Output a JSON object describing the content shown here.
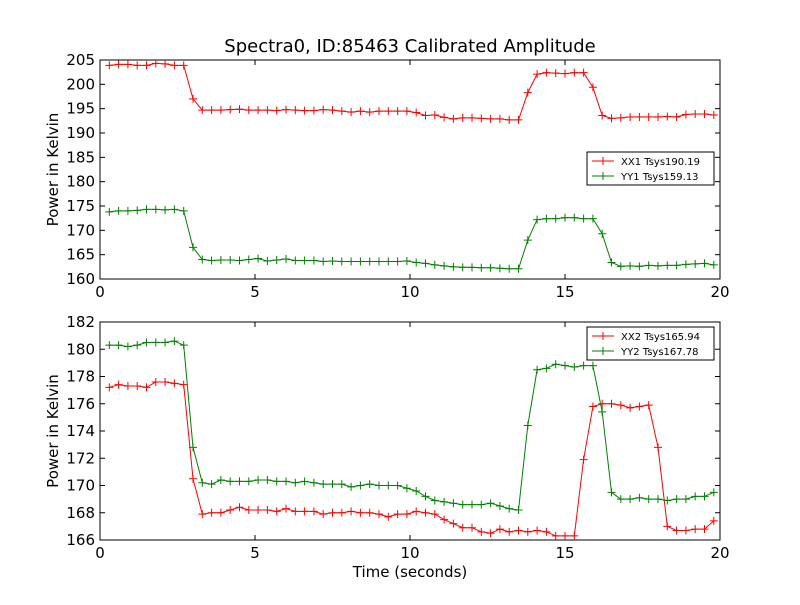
{
  "chart_data": [
    {
      "type": "line",
      "title": "Spectra0, ID:85463 Calibrated Amplitude",
      "xlabel": "",
      "ylabel": "Power in Kelvin",
      "xlim": [
        0,
        20
      ],
      "ylim": [
        160,
        205
      ],
      "xticks": [
        0,
        5,
        10,
        15,
        20
      ],
      "yticks": [
        160,
        165,
        170,
        175,
        180,
        185,
        190,
        195,
        200,
        205
      ],
      "grid": false,
      "legend_position": "right",
      "x": [
        0.3,
        0.6,
        0.9,
        1.2,
        1.5,
        1.8,
        2.1,
        2.4,
        2.7,
        3.0,
        3.3,
        3.6,
        3.9,
        4.2,
        4.5,
        4.8,
        5.1,
        5.4,
        5.7,
        6.0,
        6.3,
        6.6,
        6.9,
        7.2,
        7.5,
        7.8,
        8.1,
        8.4,
        8.7,
        9.0,
        9.3,
        9.6,
        9.9,
        10.2,
        10.5,
        10.8,
        11.1,
        11.4,
        11.7,
        12.0,
        12.3,
        12.6,
        12.9,
        13.2,
        13.5,
        13.8,
        14.1,
        14.4,
        14.7,
        15.0,
        15.3,
        15.6,
        15.9,
        16.2,
        16.5,
        16.8,
        17.1,
        17.4,
        17.7,
        18.0,
        18.3,
        18.6,
        18.9,
        19.2,
        19.5,
        19.8
      ],
      "series": [
        {
          "name": "XX1 Tsys190.19",
          "color": "#ff0000",
          "values": [
            203.9,
            204.1,
            204.1,
            203.9,
            203.9,
            204.3,
            204.2,
            203.9,
            203.9,
            197.0,
            194.7,
            194.7,
            194.7,
            194.8,
            194.9,
            194.7,
            194.7,
            194.7,
            194.6,
            194.8,
            194.7,
            194.6,
            194.6,
            194.8,
            194.7,
            194.5,
            194.3,
            194.5,
            194.3,
            194.5,
            194.5,
            194.5,
            194.5,
            194.2,
            193.6,
            193.7,
            193.2,
            192.9,
            193.1,
            193.1,
            193.0,
            192.9,
            192.9,
            192.7,
            192.7,
            198.3,
            202.1,
            202.4,
            202.3,
            202.2,
            202.4,
            202.4,
            199.4,
            193.6,
            193.0,
            193.1,
            193.3,
            193.3,
            193.3,
            193.3,
            193.4,
            193.3,
            193.8,
            193.9,
            193.9,
            193.7
          ]
        },
        {
          "name": "YY1 Tsys159.13",
          "color": "#008000",
          "values": [
            173.8,
            174.0,
            174.0,
            174.1,
            174.3,
            174.3,
            174.2,
            174.3,
            174.0,
            166.5,
            164.0,
            163.8,
            163.9,
            163.9,
            163.8,
            164.0,
            164.2,
            163.7,
            163.9,
            164.1,
            163.8,
            163.8,
            163.8,
            163.6,
            163.7,
            163.6,
            163.6,
            163.6,
            163.6,
            163.6,
            163.6,
            163.6,
            163.7,
            163.4,
            163.2,
            162.9,
            162.7,
            162.5,
            162.4,
            162.4,
            162.3,
            162.3,
            162.2,
            162.1,
            162.1,
            168.0,
            172.2,
            172.4,
            172.4,
            172.6,
            172.6,
            172.4,
            172.4,
            169.3,
            163.4,
            162.6,
            162.7,
            162.6,
            162.8,
            162.7,
            162.8,
            162.8,
            163.0,
            163.1,
            163.2,
            162.9
          ]
        }
      ]
    },
    {
      "type": "line",
      "title": "",
      "xlabel": "Time (seconds)",
      "ylabel": "Power in Kelvin",
      "xlim": [
        0,
        20
      ],
      "ylim": [
        166,
        182
      ],
      "xticks": [
        0,
        5,
        10,
        15,
        20
      ],
      "yticks": [
        166,
        168,
        170,
        172,
        174,
        176,
        178,
        180,
        182
      ],
      "grid": false,
      "legend_position": "top-right",
      "x": [
        0.3,
        0.6,
        0.9,
        1.2,
        1.5,
        1.8,
        2.1,
        2.4,
        2.7,
        3.0,
        3.3,
        3.6,
        3.9,
        4.2,
        4.5,
        4.8,
        5.1,
        5.4,
        5.7,
        6.0,
        6.3,
        6.6,
        6.9,
        7.2,
        7.5,
        7.8,
        8.1,
        8.4,
        8.7,
        9.0,
        9.3,
        9.6,
        9.9,
        10.2,
        10.5,
        10.8,
        11.1,
        11.4,
        11.7,
        12.0,
        12.3,
        12.6,
        12.9,
        13.2,
        13.5,
        13.8,
        14.1,
        14.4,
        14.7,
        15.0,
        15.3,
        15.6,
        15.9,
        16.2,
        16.5,
        16.8,
        17.1,
        17.4,
        17.7,
        18.0,
        18.3,
        18.6,
        18.9,
        19.2,
        19.5,
        19.8
      ],
      "series": [
        {
          "name": "XX2 Tsys165.94",
          "color": "#ff0000",
          "values": [
            177.2,
            177.4,
            177.3,
            177.3,
            177.2,
            177.6,
            177.6,
            177.5,
            177.4,
            170.5,
            167.9,
            168.0,
            168.0,
            168.2,
            168.4,
            168.2,
            168.2,
            168.2,
            168.1,
            168.3,
            168.1,
            168.1,
            168.1,
            167.9,
            168.0,
            168.0,
            168.1,
            168.0,
            168.0,
            167.9,
            167.7,
            167.9,
            167.9,
            168.1,
            168.0,
            167.9,
            167.5,
            167.2,
            166.9,
            166.9,
            166.6,
            166.5,
            166.8,
            166.6,
            166.7,
            166.6,
            166.7,
            166.6,
            166.3,
            166.3,
            166.3,
            171.9,
            175.8,
            176.0,
            176.0,
            175.9,
            175.7,
            175.8,
            175.9,
            172.8,
            167.0,
            166.7,
            166.7,
            166.8,
            166.8,
            167.4
          ],
          "note_index_shift": 0
        },
        {
          "name": "YY2 Tsys167.78",
          "color": "#008000",
          "values": [
            180.3,
            180.3,
            180.2,
            180.3,
            180.5,
            180.5,
            180.5,
            180.6,
            180.3,
            172.8,
            170.2,
            170.1,
            170.4,
            170.3,
            170.3,
            170.3,
            170.4,
            170.4,
            170.3,
            170.3,
            170.2,
            170.3,
            170.2,
            170.1,
            170.1,
            170.1,
            169.9,
            170.0,
            170.1,
            170.0,
            170.0,
            170.0,
            169.8,
            169.6,
            169.2,
            168.9,
            168.8,
            168.7,
            168.6,
            168.6,
            168.6,
            168.7,
            168.5,
            168.3,
            168.2,
            174.4,
            178.5,
            178.6,
            178.9,
            178.8,
            178.7,
            178.8,
            178.8,
            175.4,
            169.5,
            169.0,
            169.0,
            169.1,
            169.0,
            169.0,
            168.9,
            169.0,
            169.0,
            169.2,
            169.2,
            169.5
          ]
        }
      ]
    }
  ]
}
